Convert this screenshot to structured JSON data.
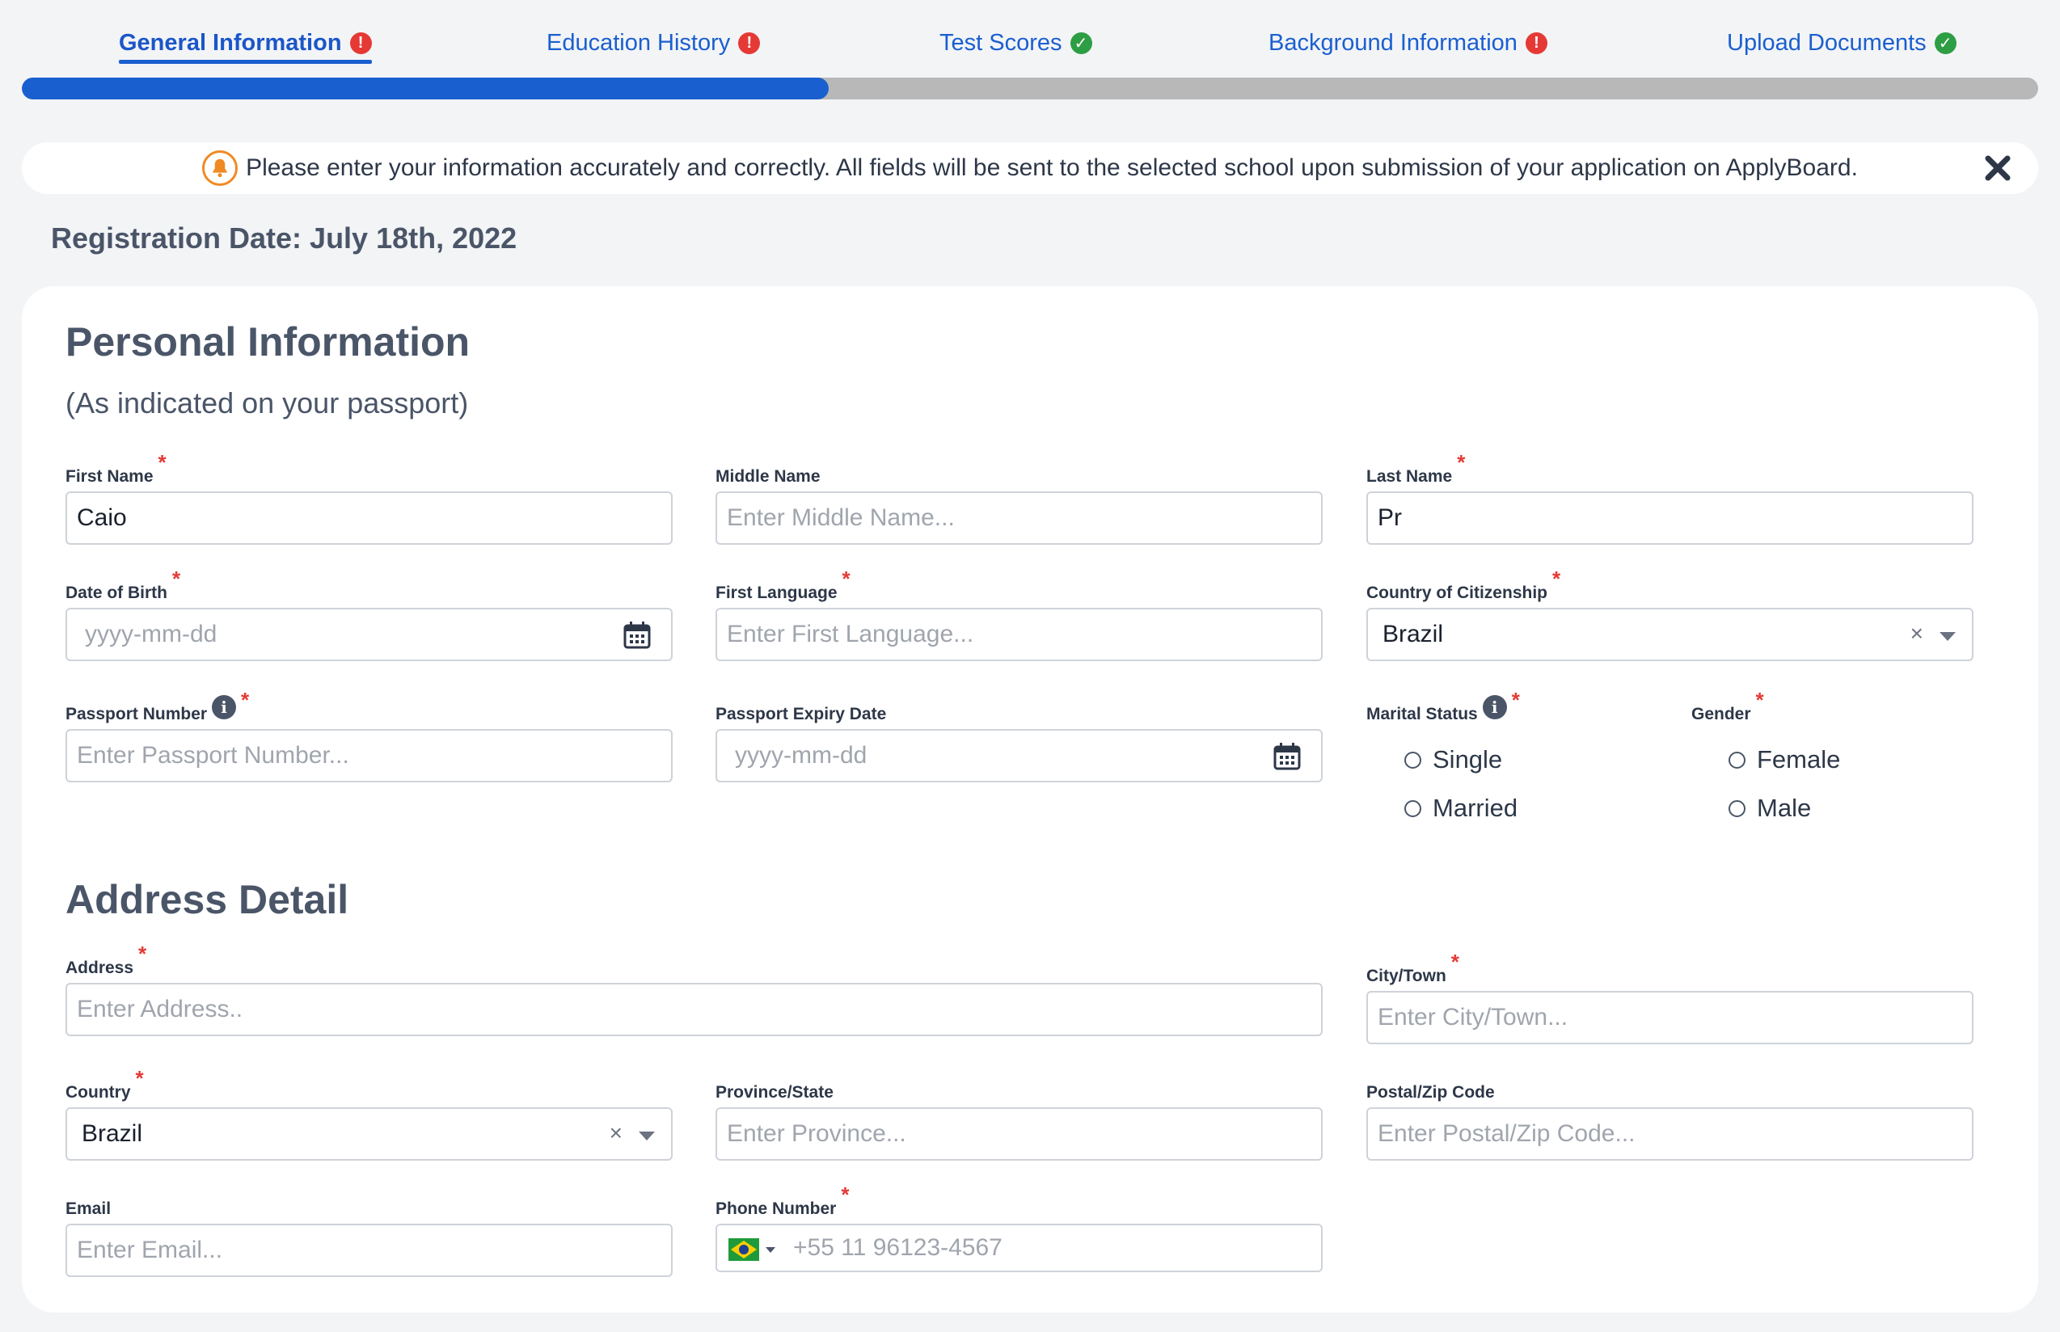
{
  "steps": [
    {
      "label": "General Information",
      "status": "error"
    },
    {
      "label": "Education History",
      "status": "error"
    },
    {
      "label": "Test Scores",
      "status": "ok"
    },
    {
      "label": "Background Information",
      "status": "error"
    },
    {
      "label": "Upload Documents",
      "status": "ok"
    }
  ],
  "progress": {
    "fraction": 0.4
  },
  "alert": {
    "text": "Please enter your information accurately and correctly. All fields will be sent to the selected school upon submission of your application on ApplyBoard."
  },
  "registration_date": "Registration Date: July 18th, 2022",
  "personal": {
    "title": "Personal Information",
    "subtitle": "(As indicated on your passport)",
    "first_name": {
      "label": "First Name",
      "value": "Caio"
    },
    "middle_name": {
      "label": "Middle Name",
      "placeholder": "Enter Middle Name..."
    },
    "last_name": {
      "label": "Last Name",
      "value": "Pr"
    },
    "dob": {
      "label": "Date of Birth",
      "placeholder": "yyyy-mm-dd"
    },
    "first_language": {
      "label": "First Language",
      "placeholder": "Enter First Language..."
    },
    "citizenship": {
      "label": "Country of Citizenship",
      "value": "Brazil"
    },
    "passport_number": {
      "label": "Passport Number",
      "placeholder": "Enter Passport Number..."
    },
    "passport_expiry": {
      "label": "Passport Expiry Date",
      "placeholder": "yyyy-mm-dd"
    },
    "marital_status": {
      "label": "Marital Status",
      "options": [
        "Single",
        "Married"
      ]
    },
    "gender": {
      "label": "Gender",
      "options": [
        "Female",
        "Male"
      ]
    }
  },
  "address": {
    "title": "Address Detail",
    "address": {
      "label": "Address",
      "placeholder": "Enter Address.."
    },
    "city": {
      "label": "City/Town",
      "placeholder": "Enter City/Town..."
    },
    "country": {
      "label": "Country",
      "value": "Brazil"
    },
    "province": {
      "label": "Province/State",
      "placeholder": "Enter Province..."
    },
    "postal": {
      "label": "Postal/Zip Code",
      "placeholder": "Enter Postal/Zip Code..."
    },
    "email": {
      "label": "Email",
      "placeholder": "Enter Email..."
    },
    "phone": {
      "label": "Phone Number",
      "placeholder": "+55 11 96123-4567"
    }
  },
  "icons": {
    "error": "exclamation-circle-icon",
    "ok": "check-circle-icon",
    "bell": "bell-icon",
    "close": "close-icon",
    "calendar": "calendar-icon",
    "info": "info-icon"
  },
  "colors": {
    "accent": "#1a5fd0",
    "error": "#e53935",
    "success": "#2e9e44",
    "warning": "#f08a24"
  }
}
